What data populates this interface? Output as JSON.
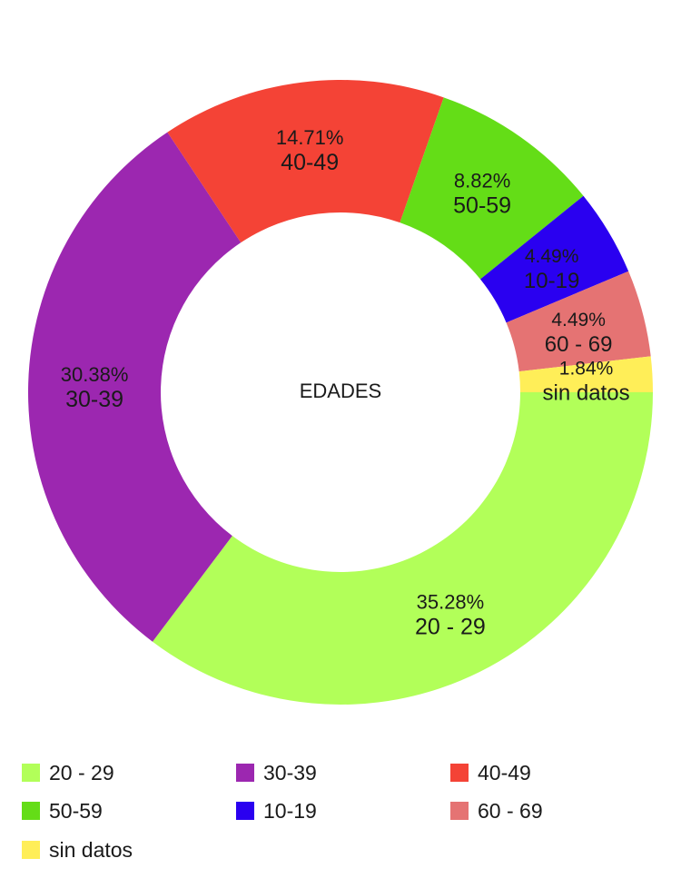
{
  "chart_data": {
    "type": "pie",
    "title": "",
    "center_label": "EDADES",
    "donut": true,
    "legend_position": "bottom",
    "slices": [
      {
        "label": "20 - 29",
        "value": 35.28,
        "value_label": "35.28%",
        "color": "#b2ff59"
      },
      {
        "label": "30-39",
        "value": 30.38,
        "value_label": "30.38%",
        "color": "#9c27b0"
      },
      {
        "label": "40-49",
        "value": 14.71,
        "value_label": "14.71%",
        "color": "#f44336"
      },
      {
        "label": "50-59",
        "value": 8.82,
        "value_label": "8.82%",
        "color": "#64dd17"
      },
      {
        "label": "10-19",
        "value": 4.49,
        "value_label": "4.49%",
        "color": "#2a00f0"
      },
      {
        "label": "60 - 69",
        "value": 4.49,
        "value_label": "4.49%",
        "color": "#e57373"
      },
      {
        "label": "sin datos",
        "value": 1.84,
        "value_label": "1.84%",
        "color": "#ffee58"
      }
    ]
  },
  "legend": {
    "items": [
      {
        "label": "20 - 29",
        "color": "#b2ff59"
      },
      {
        "label": "30-39",
        "color": "#9c27b0"
      },
      {
        "label": "40-49",
        "color": "#f44336"
      },
      {
        "label": "50-59",
        "color": "#64dd17"
      },
      {
        "label": "10-19",
        "color": "#2a00f0"
      },
      {
        "label": "60 - 69",
        "color": "#e57373"
      },
      {
        "label": "sin datos",
        "color": "#ffee58"
      }
    ]
  }
}
